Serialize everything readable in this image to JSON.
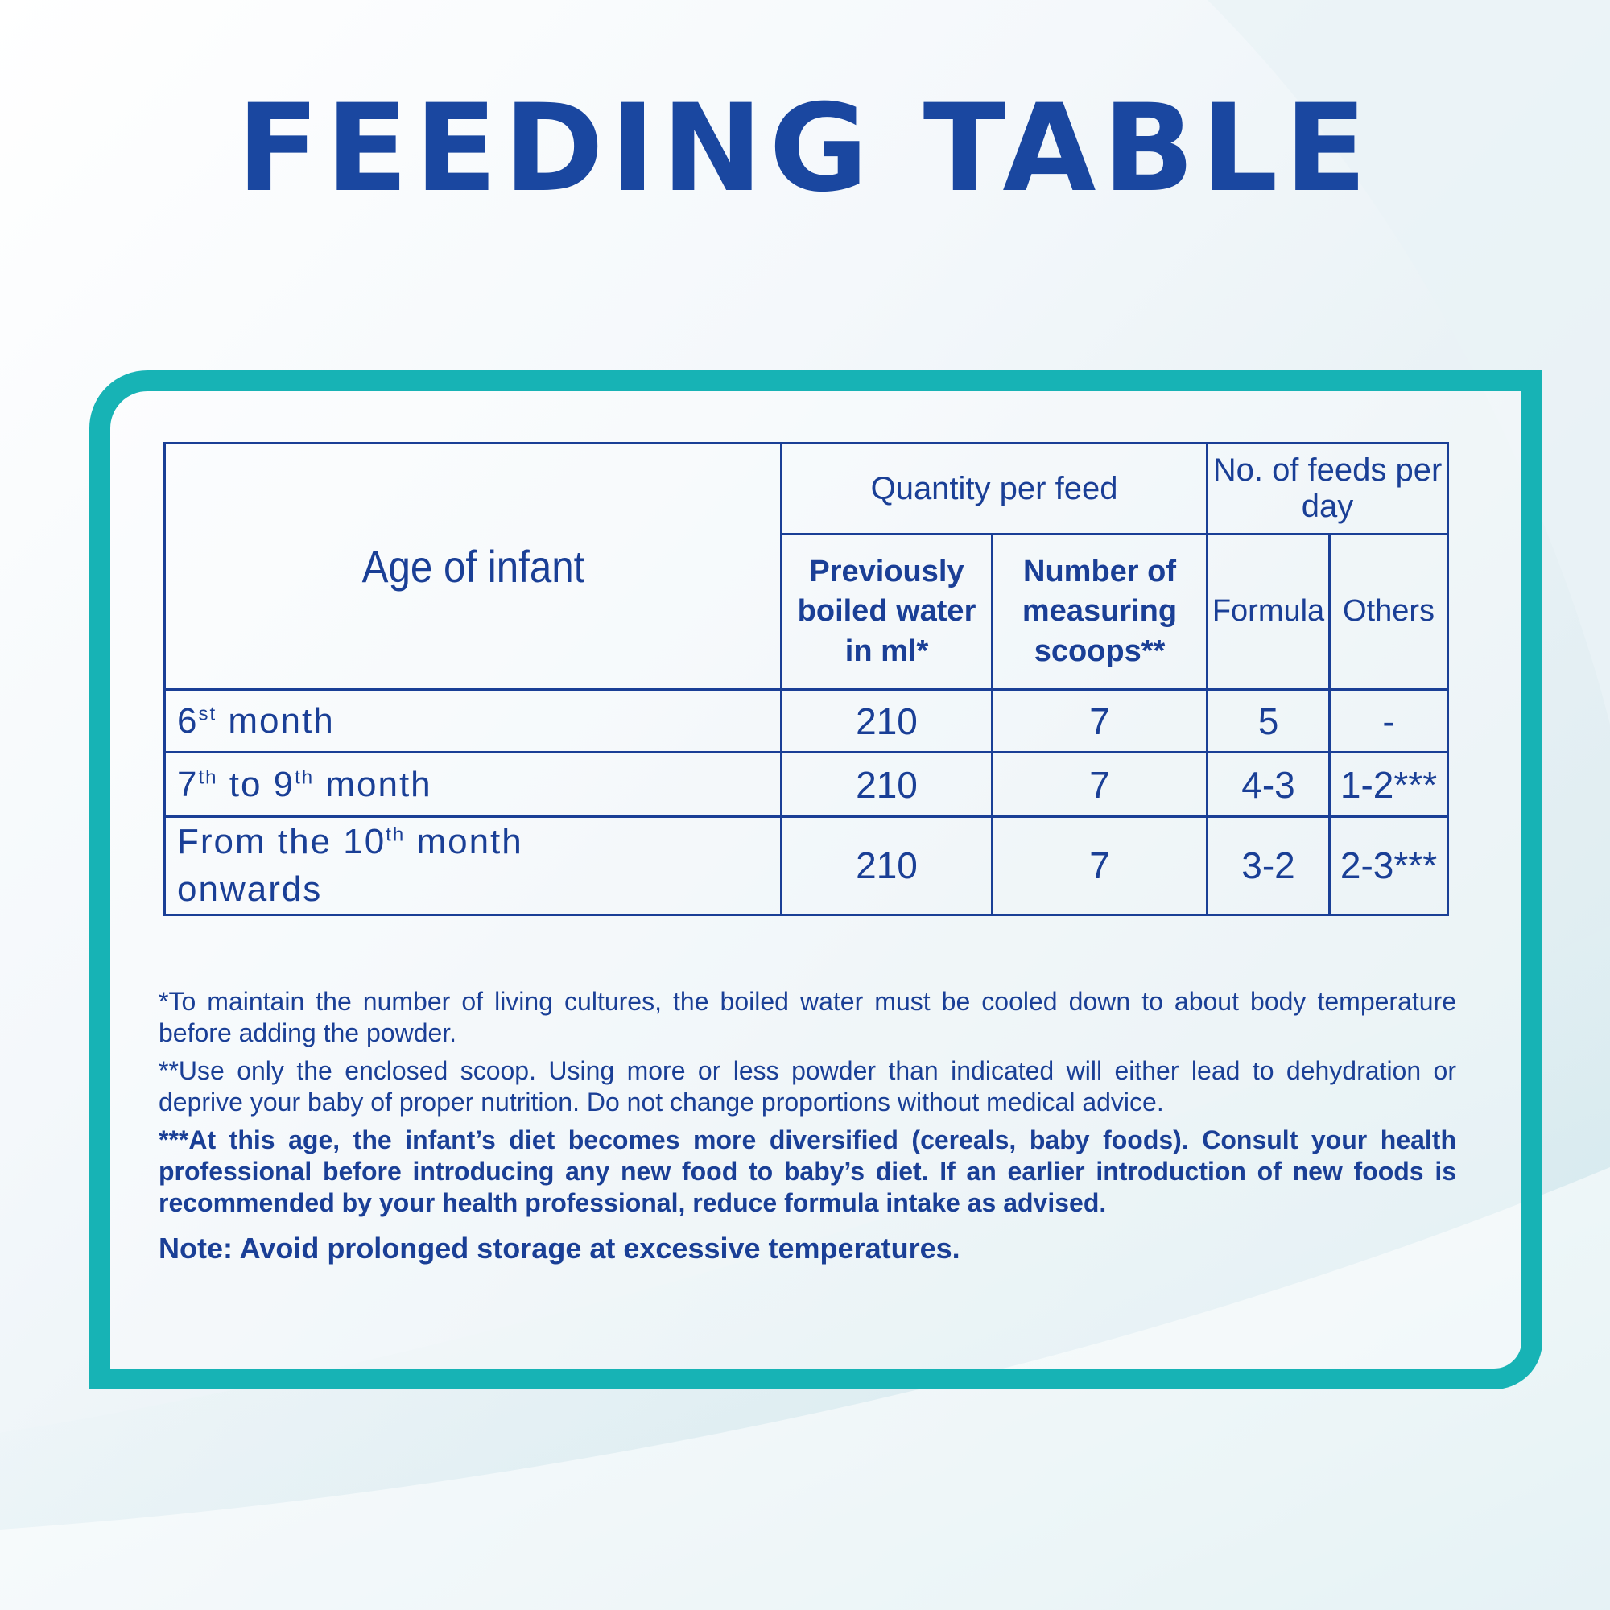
{
  "title": "FEEDING TABLE",
  "table": {
    "age_header": "Age of infant",
    "quantity_header": "Quantity per feed",
    "feeds_header": "No. of feeds per day",
    "water_header": "Previously boiled water in ml*",
    "scoops_header": "Number of measuring scoops**",
    "formula_header": "Formula",
    "others_header": "Others",
    "rows": [
      {
        "age_pre": "6",
        "age_sup": "st",
        "age_post": " month",
        "water": "210",
        "scoops": "7",
        "formula": "5",
        "others": "-"
      },
      {
        "age_pre": "7",
        "age_sup": "th",
        "age_mid": " to 9",
        "age_sup2": "th",
        "age_post": " month",
        "water": "210",
        "scoops": "7",
        "formula": "4-3",
        "others": "1-2***"
      },
      {
        "age_pre": "From the 10",
        "age_sup": "th",
        "age_post": " month",
        "age_line2": "onwards",
        "water": "210",
        "scoops": "7",
        "formula": "3-2",
        "others": "2-3***"
      }
    ]
  },
  "notes": [
    "*To maintain the number of living cultures, the boiled water must be cooled down to about body temperature before adding the powder.",
    "**Use only the enclosed scoop. Using more or less powder than indicated will either lead to dehydration or deprive your baby of proper nutrition. Do not change proportions without medical advice.",
    "***At this age, the infant’s diet becomes more diversified (cereals, baby foods). Consult your health professional before introducing any new food to baby’s diet. If an earlier introduction of new foods is recommended by your health professional, reduce formula intake as advised."
  ],
  "final_note": "Note: Avoid prolonged storage at excessive temperatures.",
  "colors": {
    "text": "#1a3f96",
    "title": "#1a47a0",
    "frame": "#17b3b5"
  }
}
